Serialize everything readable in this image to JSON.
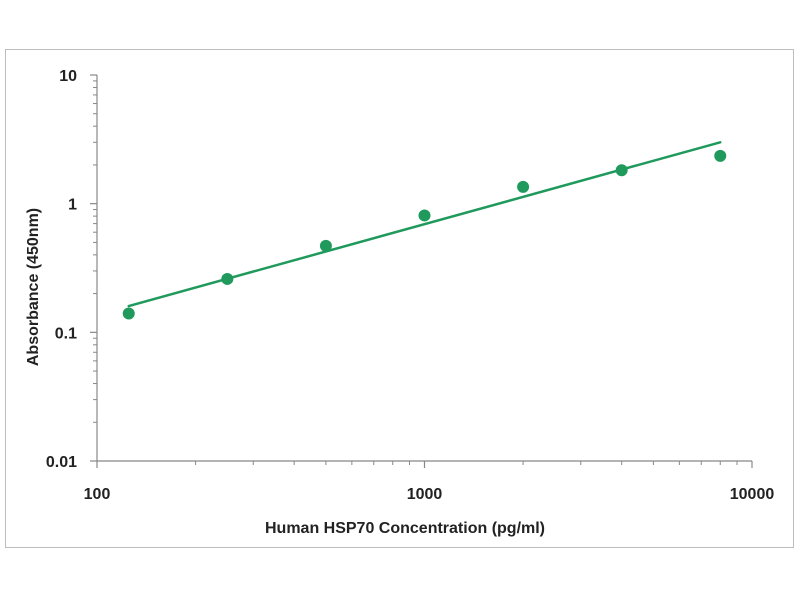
{
  "chart_data": {
    "type": "scatter",
    "xlabel": "Human HSP70 Concentration (pg/ml)",
    "ylabel": "Absorbance (450nm)",
    "xscale": "log",
    "yscale": "log",
    "xlim": [
      100,
      10000
    ],
    "ylim": [
      0.01,
      10
    ],
    "x_tick_labels": [
      "100",
      "1000",
      "10000"
    ],
    "y_tick_labels": [
      "10",
      "1",
      "0.1",
      "0.01"
    ],
    "grid": false,
    "legend": "none",
    "series": [
      {
        "points": [
          {
            "x": 125,
            "y": 0.14
          },
          {
            "x": 250,
            "y": 0.26
          },
          {
            "x": 500,
            "y": 0.47
          },
          {
            "x": 1000,
            "y": 0.81
          },
          {
            "x": 2000,
            "y": 1.35
          },
          {
            "x": 4000,
            "y": 1.82
          },
          {
            "x": 8000,
            "y": 2.35
          }
        ],
        "color": "#1f9a5c"
      }
    ],
    "fit_line": {
      "type": "power",
      "from": {
        "x": 125,
        "y": 0.16
      },
      "to": {
        "x": 8000,
        "y": 3.0
      },
      "color": "#1f9a5c"
    }
  }
}
